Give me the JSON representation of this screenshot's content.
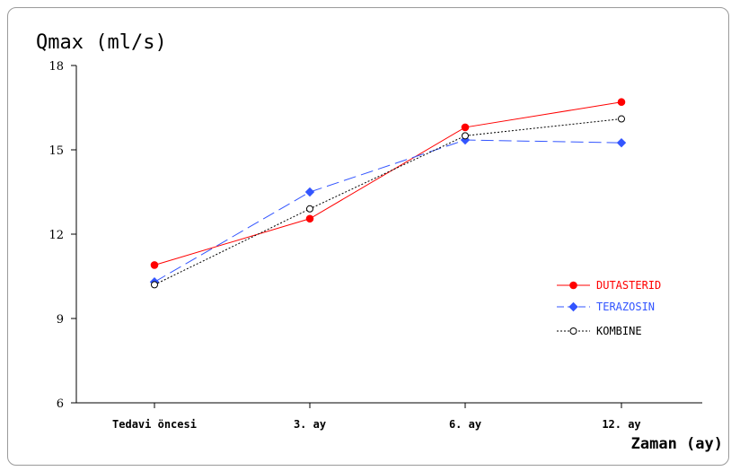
{
  "chart_data": {
    "type": "line",
    "ylabel": "Qmax (ml/s)",
    "xlabel": "Zaman (ay)",
    "categories": [
      "Tedavi öncesi",
      "3. ay",
      "6. ay",
      "12. ay"
    ],
    "ylim": [
      6,
      18
    ],
    "yticks": [
      6,
      9,
      12,
      15,
      18
    ],
    "legend_position": "right",
    "series": [
      {
        "name": "DUTASTERID",
        "values": [
          10.9,
          12.55,
          15.8,
          16.7
        ],
        "color": "#ff0000",
        "marker": "filled-circle",
        "line_style": "solid"
      },
      {
        "name": "TERAZOSIN",
        "values": [
          10.3,
          13.5,
          15.35,
          15.25
        ],
        "color": "#3355ff",
        "marker": "filled-diamond",
        "line_style": "dashed"
      },
      {
        "name": "KOMBINE",
        "values": [
          10.2,
          12.9,
          15.5,
          16.1
        ],
        "color": "#000000",
        "marker": "open-circle",
        "line_style": "dotted"
      }
    ]
  }
}
